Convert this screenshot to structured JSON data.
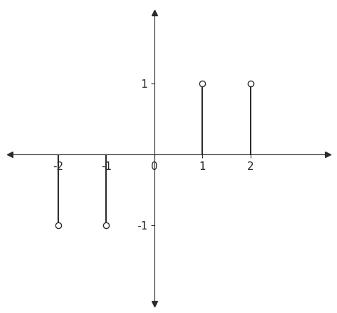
{
  "chart_data": {
    "type": "stem",
    "x": [
      -2,
      -1,
      1,
      2
    ],
    "values": [
      -1,
      -1,
      1,
      1
    ],
    "color": "#2b2b2b",
    "marker": "o",
    "xlim": [
      -3.0,
      3.6
    ],
    "ylim": [
      -2.1,
      2.0
    ],
    "xticks": [
      -2,
      -1,
      0,
      1,
      2
    ],
    "yticks": [
      -1,
      1
    ],
    "grid": false
  }
}
